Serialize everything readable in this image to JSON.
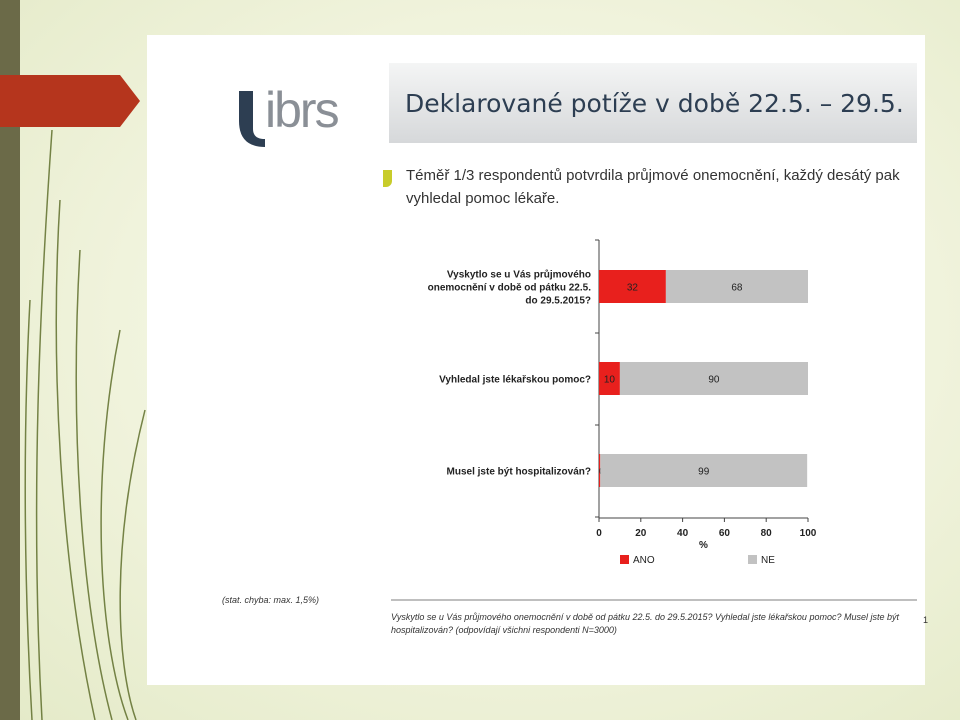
{
  "colors": {
    "accent": "#b5351d",
    "ano": "#e8201d",
    "ne": "#c2c2c2",
    "logo": "#2d3e52"
  },
  "logo": {
    "text": "ibrs"
  },
  "title": "Deklarované potíže v době 22.5. – 29.5.",
  "subtitle": "Téměř 1/3 respondentů potvrdila průjmové onemocnění, každý desátý pak vyhledal pomoc lékaře.",
  "chart_data": {
    "type": "bar",
    "orientation": "horizontal",
    "stacked": true,
    "categories": [
      [
        "Vyskytlo se u Vás průjmového",
        "onemocnění v době od pátku 22.5.",
        "do 29.5.2015?"
      ],
      [
        "Vyhledal jste lékařskou pomoc?"
      ],
      [
        "Musel jste být hospitalizován?"
      ]
    ],
    "series": [
      {
        "name": "ANO",
        "values": [
          32,
          10,
          0.6
        ],
        "labels": [
          "32",
          "10",
          "0,6"
        ]
      },
      {
        "name": "NE",
        "values": [
          68,
          90,
          99
        ],
        "labels": [
          "68",
          "90",
          "99"
        ]
      }
    ],
    "xlabel": "%",
    "xlim": [
      0,
      100
    ],
    "xticks": [
      "0",
      "20",
      "40",
      "60",
      "80",
      "100"
    ],
    "legend_position": "bottom"
  },
  "footnote": "(stat. chyba: max. 1,5%)",
  "source": "Vyskytlo se u Vás průjmového onemocnění v době od pátku 22.5. do 29.5.2015? Vyhledal jste lékařskou pomoc? Musel jste být hospitalizován? (odpovídají všichni respondenti N=3000)",
  "page_number": "1"
}
